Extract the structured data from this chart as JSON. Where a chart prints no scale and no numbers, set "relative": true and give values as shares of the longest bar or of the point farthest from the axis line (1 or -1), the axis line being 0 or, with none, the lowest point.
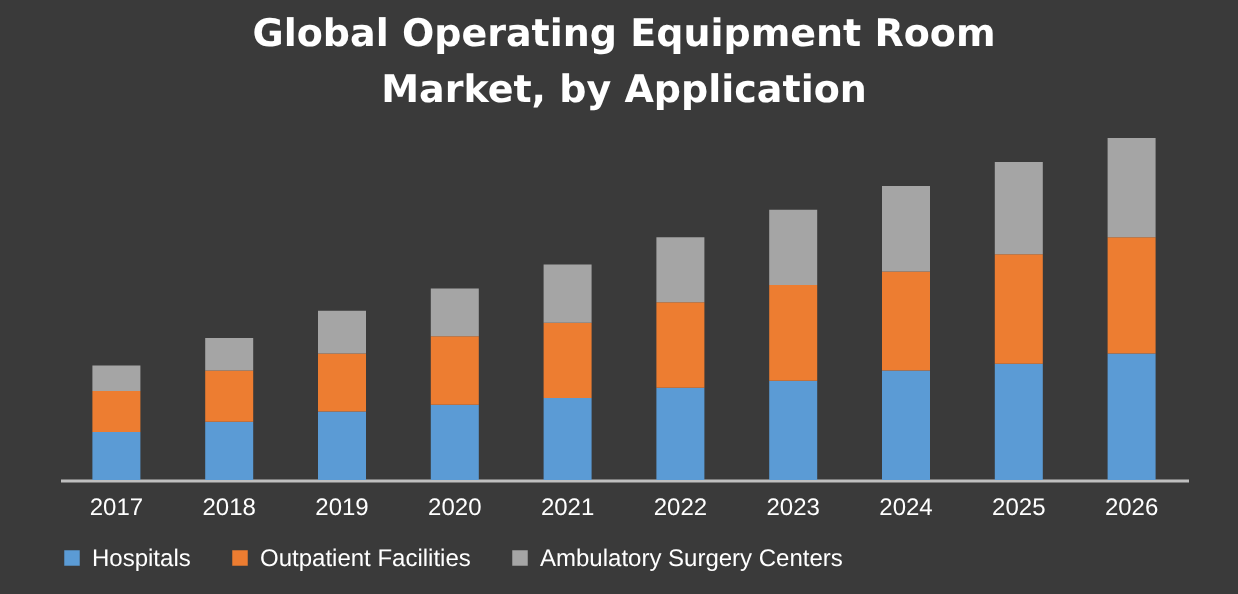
{
  "chart_data": {
    "type": "bar",
    "title": "Global Operating Equipment Room Market, by Application",
    "relative": true,
    "stacked": true,
    "legend": "bottom",
    "categories": [
      "2017",
      "2018",
      "2019",
      "2020",
      "2021",
      "2022",
      "2023",
      "2024",
      "2025",
      "2026"
    ],
    "series": [
      {
        "name": "Hospitals",
        "color": "#5b9bd5",
        "values": [
          0.14,
          0.17,
          0.2,
          0.22,
          0.24,
          0.27,
          0.29,
          0.32,
          0.34,
          0.37
        ]
      },
      {
        "name": "Outpatient Facilities",
        "color": "#ed7d31",
        "values": [
          0.12,
          0.15,
          0.17,
          0.2,
          0.22,
          0.25,
          0.28,
          0.29,
          0.32,
          0.34
        ]
      },
      {
        "name": "Ambulatory Surgery Centers",
        "color": "#a5a5a5",
        "values": [
          0.075,
          0.095,
          0.125,
          0.14,
          0.17,
          0.19,
          0.22,
          0.25,
          0.27,
          0.29
        ]
      }
    ]
  }
}
